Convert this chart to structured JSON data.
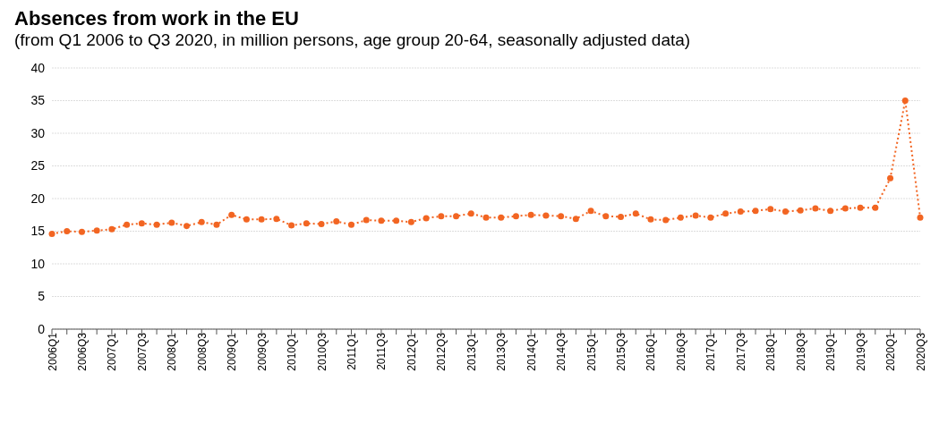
{
  "chart_data": {
    "type": "line",
    "title": "Absences from work in the EU",
    "subtitle": "(from Q1 2006 to Q3 2020, in million persons, age group 20-64, seasonally adjusted data)",
    "categories": [
      "2006Q1",
      null,
      "2006Q3",
      null,
      "2007Q1",
      null,
      "2007Q3",
      null,
      "2008Q1",
      null,
      "2008Q3",
      null,
      "2009Q1",
      null,
      "2009Q3",
      null,
      "2010Q1",
      null,
      "2010Q3",
      null,
      "2011Q1",
      null,
      "2011Q3",
      null,
      "2012Q1",
      null,
      "2012Q3",
      null,
      "2013Q1",
      null,
      "2013Q3",
      null,
      "2014Q1",
      null,
      "2014Q3",
      null,
      "2015Q1",
      null,
      "2015Q3",
      null,
      "2016Q1",
      null,
      "2016Q3",
      null,
      "2017Q1",
      null,
      "2017Q3",
      null,
      "2018Q1",
      null,
      "2018Q3",
      null,
      "2019Q1",
      null,
      "2019Q3",
      null,
      "2020Q1",
      null,
      "2020Q3"
    ],
    "series": [
      {
        "color": "#f26522",
        "values": [
          14.6,
          15.0,
          14.9,
          15.1,
          15.3,
          16.0,
          16.2,
          16.0,
          16.3,
          15.8,
          16.4,
          16.0,
          17.5,
          16.8,
          16.8,
          16.9,
          15.9,
          16.2,
          16.1,
          16.5,
          16.0,
          16.7,
          16.6,
          16.6,
          16.4,
          17.0,
          17.3,
          17.3,
          17.7,
          17.1,
          17.1,
          17.3,
          17.5,
          17.4,
          17.3,
          16.9,
          18.1,
          17.3,
          17.2,
          17.7,
          16.8,
          16.7,
          17.1,
          17.4,
          17.1,
          17.7,
          18.0,
          18.1,
          18.4,
          18.0,
          18.2,
          18.5,
          18.1,
          18.5,
          18.6,
          18.6,
          23.1,
          35.0,
          17.1
        ]
      }
    ],
    "ylim": [
      0,
      40
    ],
    "yticks": [
      0,
      5,
      10,
      15,
      20,
      25,
      30,
      35,
      40
    ],
    "grid": "y",
    "marker": "circle",
    "line_style": "dotted"
  }
}
